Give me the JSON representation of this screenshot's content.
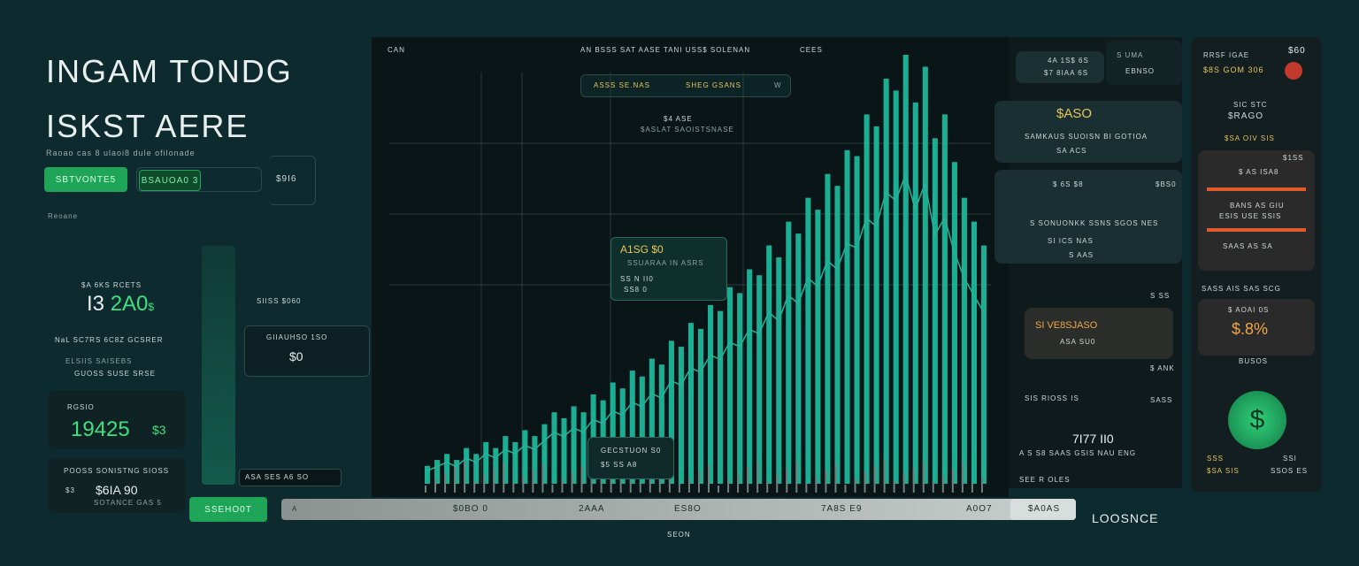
{
  "header": {
    "title_line1": "INGAM TONDG",
    "title_line2": "ISKST AERE",
    "subtitle": "Raoao cas 8 ulaoi8 dule ofilonade"
  },
  "controls": {
    "primary_button": "SBTVONTE5",
    "secondary_button": "BSAUOA0 3",
    "value": "$9I6",
    "caption": "Reoane"
  },
  "left_stats": {
    "stat1_label": "$A 6KS RCETS",
    "stat1_value_a": "I3",
    "stat1_value_b": "2A0",
    "stat1_suffix": "$",
    "stat1_row": "NaL  SC7RS  6C8Z  GCSRER",
    "stat1_caption": "ELSIIS  SAISEBS",
    "stat1_foot": "GUOSS  SUSE SRSE",
    "stat2_label": "RGSIO",
    "stat2_value": "19425",
    "stat2_suffix": "$3",
    "stat3_label": "POOSS  SONISTNG  SIOSS",
    "stat3_prefix": "$3",
    "stat3_value": "$6IA 90",
    "stat3_caption": "SOTANCE GAS 5"
  },
  "mini_card": {
    "label": "SIISS  $060",
    "title": "GIIAUHSO 1SO",
    "value": "$0"
  },
  "chart": {
    "top_left": "CAN",
    "top_center": "AN  BSSS SAT  AASE TANI  USS$ SOLENAN",
    "top_right": "CEES",
    "badge_left": "ASSS  SE.NAS",
    "badge_right": "SHEG GSANS",
    "badge_arrow": "W",
    "callout1_a": "$4 ASE",
    "callout1_b": "$ASLAT SAOISTSNASE",
    "tooltip1_title": "A1SG $0",
    "tooltip1_sub": "SSUARAA IN ASRS",
    "tooltip1_line": "SS  N  II0",
    "tooltip1_line2": "SS8  0",
    "tooltip2_title": "GECSTUON  S0",
    "tooltip2_line": "$5  SS A8",
    "legend_left": "ASA   SES   A6  SO",
    "x_labels": [
      "$0BO 0",
      "2AAA",
      "ES8O",
      "7A8S  E9",
      "A0O7"
    ],
    "x_axis_title": "SEON",
    "bottom_right_label": "LOOSNCE",
    "bottom_left_button": "SSEHO0T",
    "bottom_right_box": "$A0AS",
    "scrub_icon": "A"
  },
  "chart_data": {
    "type": "bar",
    "values": [
      3,
      4,
      5,
      4,
      6,
      5,
      7,
      6,
      8,
      7,
      9,
      8,
      10,
      12,
      11,
      13,
      12,
      15,
      14,
      17,
      16,
      19,
      18,
      21,
      20,
      24,
      23,
      27,
      26,
      30,
      29,
      33,
      32,
      36,
      35,
      40,
      38,
      44,
      42,
      48,
      46,
      52,
      50,
      56,
      55,
      62,
      60,
      68,
      66,
      72,
      64,
      70,
      58,
      62,
      54,
      48,
      44,
      40
    ]
  },
  "right_panel": {
    "top_label1": "4A 1S$ 6S",
    "top_label1b": "$7 8IAA 6S",
    "top_icon_label": "S UMA",
    "top_label2": "EBNSO",
    "card1_value": "$ASO",
    "card1_line1": "SAMKAUS SUOISN BI GOTIOA",
    "card1_line2": "SA ACS",
    "card2_header": "$ 6S  $8",
    "card2_side": "$BS0",
    "card2_line1": "S SONUONKK SSNS  SGOS  NES",
    "card2_line2": "SI  ICS NAS",
    "card2_line3": "S AAS",
    "card3_side": "S  SS",
    "card3_title": "SI VE8SJASO",
    "card3_line": "ASA  SU0",
    "card3_side2": "$ ANK",
    "card4_line": "SIS  RIOSS IS",
    "card4_side": "SASS",
    "card5_value": "7I77  II0",
    "card5_line": "A  S  S8  SAAS  GSIS  NAU  ENG",
    "card5_foot": "SEE  R  OLES"
  },
  "far_right": {
    "head_label": "RRSF IGAE",
    "head_right": "$60",
    "head_value": "$8S GOM 306",
    "sec1_a": "SIC STC",
    "sec1_b": "$RAGO",
    "sec1_c": "$SA  OIV SIS",
    "box_tag": "$1SS",
    "box_title": "$  AS ISA8",
    "box_line1": "BANS  AS GIU",
    "box_line2": "ESIS USE SSIS",
    "box_line3": "SAAS AS SA",
    "row_small": "SASS  AIS  SAS SCG",
    "sec2_a": "$ AOAI 0S",
    "sec2_value": "$.8%",
    "sec2_caption": "BUSOS",
    "coin_symbol": "$",
    "foot_a": "SSS",
    "foot_b": "$SA SIS",
    "foot_c": "SSI",
    "foot_d": "SSOS  ES"
  },
  "colors": {
    "accent_green": "#1fa558",
    "teal_bars": "#1fc9a8",
    "yellow": "#e8c65a",
    "orange": "#f0a54a",
    "coin": "#2fd07a"
  }
}
